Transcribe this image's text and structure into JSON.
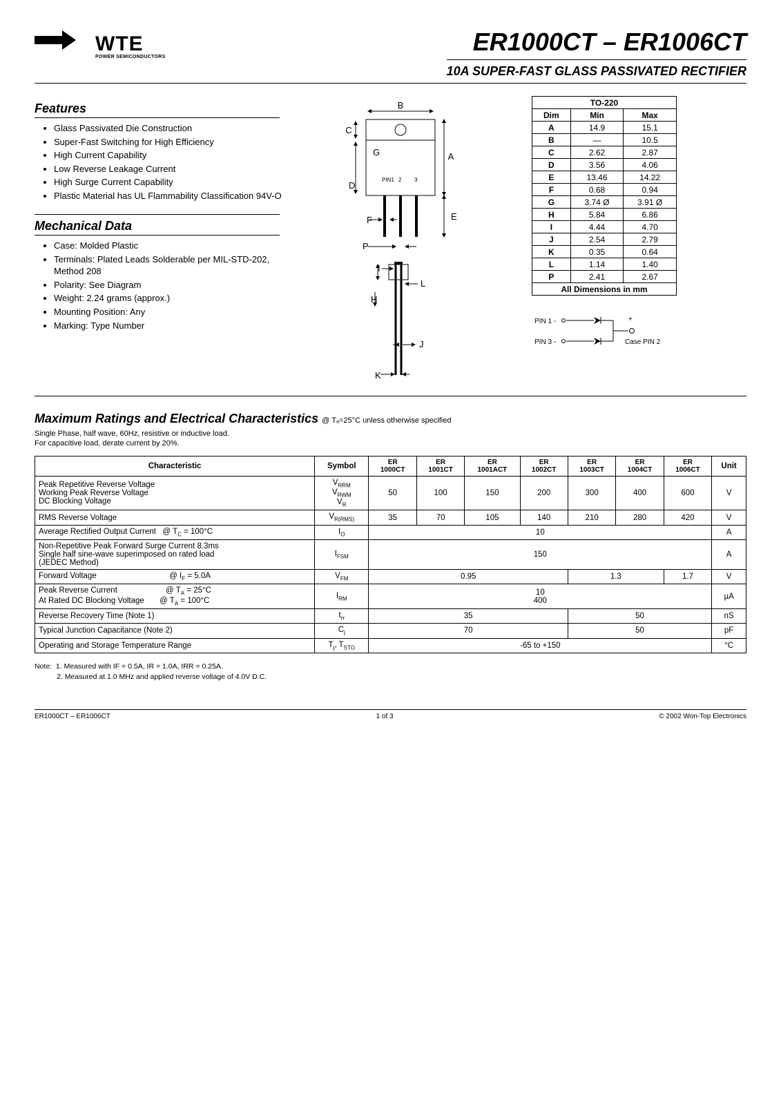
{
  "header": {
    "brand_top": "WTE",
    "brand_sub": "POWER SEMICONDUCTORS",
    "part_title": "ER1000CT – ER1006CT",
    "subtitle": "10A SUPER-FAST GLASS PASSIVATED RECTIFIER"
  },
  "features": {
    "title": "Features",
    "items": [
      "Glass Passivated Die Construction",
      "Super-Fast Switching for High Efficiency",
      "High Current Capability",
      "Low Reverse Leakage Current",
      "High Surge Current Capability",
      "Plastic Material has UL Flammability Classification 94V-O"
    ]
  },
  "mechdata": {
    "title": "Mechanical Data",
    "items": [
      "Case: Molded Plastic",
      "Terminals: Plated Leads Solderable per MIL-STD-202, Method 208",
      "Polarity: See Diagram",
      "Weight: 2.24 grams (approx.)",
      "Mounting Position: Any",
      "Marking: Type Number"
    ]
  },
  "package_labels": [
    "A",
    "B",
    "C",
    "D",
    "E",
    "F",
    "G",
    "H",
    "I",
    "J",
    "K",
    "L",
    "P",
    "PIN1",
    "2",
    "3"
  ],
  "dims": {
    "title": "TO-220",
    "headers": [
      "Dim",
      "Min",
      "Max"
    ],
    "rows": [
      [
        "A",
        "14.9",
        "15.1"
      ],
      [
        "B",
        "—",
        "10.5"
      ],
      [
        "C",
        "2.62",
        "2.87"
      ],
      [
        "D",
        "3.56",
        "4.06"
      ],
      [
        "E",
        "13.46",
        "14.22"
      ],
      [
        "F",
        "0.68",
        "0.94"
      ],
      [
        "G",
        "3.74 Ø",
        "3.91 Ø"
      ],
      [
        "H",
        "5.84",
        "6.86"
      ],
      [
        "I",
        "4.44",
        "4.70"
      ],
      [
        "J",
        "2.54",
        "2.79"
      ],
      [
        "K",
        "0.35",
        "0.64"
      ],
      [
        "L",
        "1.14",
        "1.40"
      ],
      [
        "P",
        "2.41",
        "2.67"
      ]
    ],
    "footer": "All Dimensions in mm"
  },
  "pins": {
    "pin1": "PIN 1 -",
    "pin3": "PIN 3 -",
    "plus": "+",
    "case": "Case PIN 2"
  },
  "ratings": {
    "title": "Maximum Ratings and Electrical Characteristics",
    "title_cond": " @ Tₐ=25°C unless otherwise specified",
    "note_lines": [
      "Single Phase, half wave, 60Hz, resistive or inductive load.",
      "For capacitive load, derate current by 20%."
    ],
    "headers": [
      "Characteristic",
      "Symbol",
      "ER 1000CT",
      "ER 1001CT",
      "ER 1001ACT",
      "ER 1002CT",
      "ER 1003CT",
      "ER 1004CT",
      "ER 1006CT",
      "Unit"
    ],
    "rows": [
      {
        "char": "Peak Repetitive Reverse Voltage<br>Working Peak Reverse Voltage<br>DC Blocking Voltage",
        "sym": "V<sub>RRM</sub><br>V<sub>RWM</sub><br>V<sub>R</sub>",
        "vals": [
          "50",
          "100",
          "150",
          "200",
          "300",
          "400",
          "600"
        ],
        "span": null,
        "unit": "V"
      },
      {
        "char": "RMS Reverse Voltage",
        "sym": "V<sub>R(RMS)</sub>",
        "vals": [
          "35",
          "70",
          "105",
          "140",
          "210",
          "280",
          "420"
        ],
        "span": null,
        "unit": "V"
      },
      {
        "char": "Average Rectified Output Current&nbsp;&nbsp;&nbsp;@ T<sub>C</sub> = 100°C",
        "sym": "I<sub>O</sub>",
        "vals": [
          "10"
        ],
        "span": 7,
        "unit": "A"
      },
      {
        "char": "Non-Repetitive Peak Forward Surge Current 8.3ms<br>Single half sine-wave superimposed on rated load<br>(JEDEC Method)",
        "sym": "I<sub>FSM</sub>",
        "vals": [
          "150"
        ],
        "span": 7,
        "unit": "A"
      },
      {
        "char": "Forward Voltage&nbsp;&nbsp;&nbsp;&nbsp;&nbsp;&nbsp;&nbsp;&nbsp;&nbsp;&nbsp;&nbsp;&nbsp;&nbsp;&nbsp;&nbsp;&nbsp;&nbsp;&nbsp;&nbsp;&nbsp;&nbsp;&nbsp;&nbsp;&nbsp;&nbsp;&nbsp;&nbsp;&nbsp;&nbsp;&nbsp;&nbsp;&nbsp;&nbsp;@ I<sub>F</sub> = 5.0A",
        "sym": "V<sub>FM</sub>",
        "vals": [
          "0.95",
          "1.3",
          "1.7"
        ],
        "span": [
          4,
          2,
          1
        ],
        "unit": "V"
      },
      {
        "char": "Peak Reverse Current&nbsp;&nbsp;&nbsp;&nbsp;&nbsp;&nbsp;&nbsp;&nbsp;&nbsp;&nbsp;&nbsp;&nbsp;&nbsp;&nbsp;&nbsp;&nbsp;&nbsp;&nbsp;&nbsp;&nbsp;&nbsp;&nbsp;@ T<sub>A</sub> = 25°C<br>At Rated DC Blocking Voltage&nbsp;&nbsp;&nbsp;&nbsp;&nbsp;&nbsp;&nbsp;@ T<sub>A</sub> = 100°C",
        "sym": "I<sub>RM</sub>",
        "vals": [
          "10<br>400"
        ],
        "span": 7,
        "unit": "µA"
      },
      {
        "char": "Reverse Recovery Time (Note 1)",
        "sym": "t<sub>rr</sub>",
        "vals": [
          "35",
          "50"
        ],
        "span": [
          4,
          3
        ],
        "unit": "nS"
      },
      {
        "char": "Typical Junction Capacitance (Note 2)",
        "sym": "C<sub>j</sub>",
        "vals": [
          "70",
          "50"
        ],
        "span": [
          4,
          3
        ],
        "unit": "pF"
      },
      {
        "char": "Operating and Storage Temperature Range",
        "sym": "T<sub>j</sub>, T<sub>STG</sub>",
        "vals": [
          "-65 to +150"
        ],
        "span": 7,
        "unit": "°C"
      }
    ]
  },
  "bottom_notes": [
    "Note:  1. Measured with IF = 0.5A, IR = 1.0A, IRR = 0.25A.",
    "           2. Measured at 1.0 MHz and applied reverse voltage of 4.0V D.C."
  ],
  "footer": {
    "left": "ER1000CT – ER1006CT",
    "center": "1 of 3",
    "right": "© 2002 Won-Top Electronics"
  }
}
